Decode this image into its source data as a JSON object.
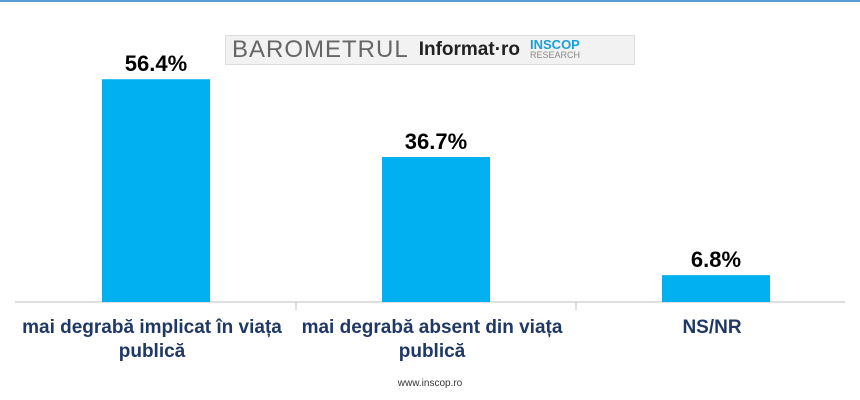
{
  "logo": {
    "barometer": "BAROMETRUL",
    "partner": "Informat·ro",
    "brand": "INSCOP",
    "brand_sub": "RESEARCH"
  },
  "chart_data": {
    "type": "bar",
    "categories": [
      "mai degrabă implicat în viața publică",
      "mai degrabă absent din viața publică",
      "NS/NR"
    ],
    "values": [
      56.4,
      36.7,
      6.8
    ],
    "value_labels": [
      "56.4%",
      "36.7%",
      "6.8%"
    ],
    "color": "#00b0f0"
  },
  "footer": "www.inscop.ro"
}
